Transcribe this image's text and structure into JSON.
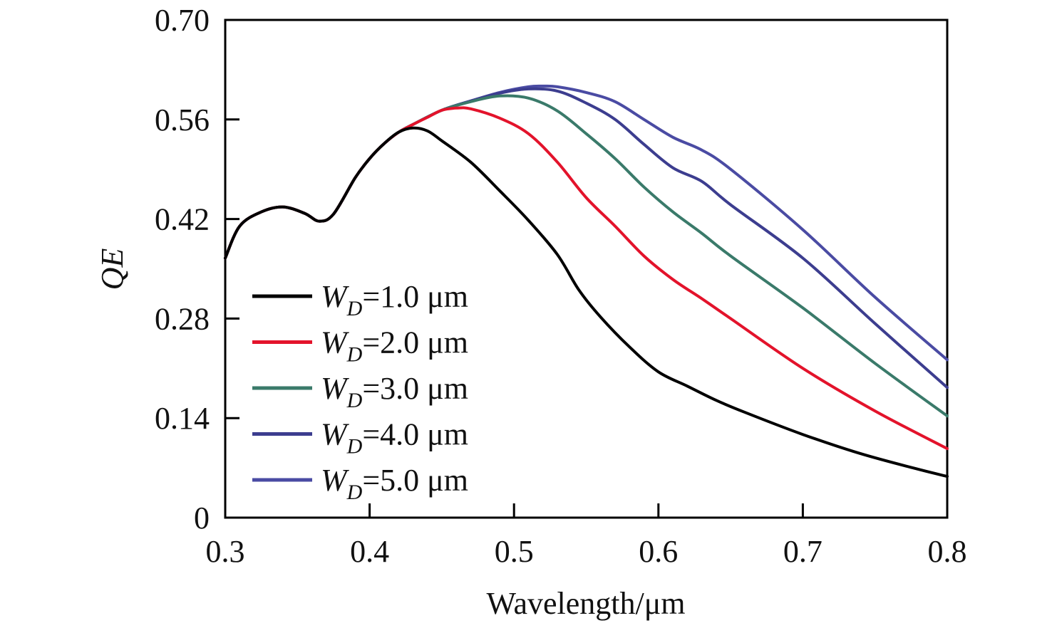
{
  "chart_data": {
    "type": "line",
    "title": "",
    "xlabel": "Wavelength/μm",
    "ylabel": "QE",
    "xlim": [
      0.3,
      0.8
    ],
    "ylim": [
      0,
      0.7
    ],
    "x_ticks": [
      "0.3",
      "0.4",
      "0.5",
      "0.6",
      "0.7",
      "0.8"
    ],
    "y_ticks": [
      "0",
      "0.14",
      "0.28",
      "0.42",
      "0.56",
      "0.70"
    ],
    "grid": false,
    "legend_position": "bottom-left",
    "series": [
      {
        "name": "WD=1.0 μm",
        "legend": {
          "symbol": "W",
          "subscript": "D",
          "rest": "=1.0 μm"
        },
        "color": "#000000",
        "points": [
          [
            0.3,
            0.365
          ],
          [
            0.31,
            0.41
          ],
          [
            0.325,
            0.43
          ],
          [
            0.34,
            0.437
          ],
          [
            0.355,
            0.428
          ],
          [
            0.365,
            0.417
          ],
          [
            0.375,
            0.427
          ],
          [
            0.39,
            0.478
          ],
          [
            0.4,
            0.505
          ],
          [
            0.41,
            0.526
          ],
          [
            0.42,
            0.542
          ],
          [
            0.43,
            0.548
          ],
          [
            0.44,
            0.544
          ],
          [
            0.45,
            0.53
          ],
          [
            0.47,
            0.5
          ],
          [
            0.49,
            0.46
          ],
          [
            0.51,
            0.418
          ],
          [
            0.53,
            0.37
          ],
          [
            0.545,
            0.32
          ],
          [
            0.56,
            0.282
          ],
          [
            0.58,
            0.24
          ],
          [
            0.6,
            0.205
          ],
          [
            0.62,
            0.185
          ],
          [
            0.64,
            0.165
          ],
          [
            0.66,
            0.148
          ],
          [
            0.7,
            0.117
          ],
          [
            0.74,
            0.09
          ],
          [
            0.78,
            0.068
          ],
          [
            0.8,
            0.058
          ]
        ]
      },
      {
        "name": "WD=2.0 μm",
        "legend": {
          "symbol": "W",
          "subscript": "D",
          "rest": "=2.0 μm"
        },
        "color": "#e3132b",
        "points": [
          [
            0.3,
            0.365
          ],
          [
            0.31,
            0.41
          ],
          [
            0.325,
            0.43
          ],
          [
            0.34,
            0.437
          ],
          [
            0.355,
            0.428
          ],
          [
            0.365,
            0.417
          ],
          [
            0.375,
            0.427
          ],
          [
            0.39,
            0.478
          ],
          [
            0.4,
            0.505
          ],
          [
            0.41,
            0.526
          ],
          [
            0.42,
            0.542
          ],
          [
            0.43,
            0.553
          ],
          [
            0.44,
            0.563
          ],
          [
            0.45,
            0.573
          ],
          [
            0.46,
            0.576
          ],
          [
            0.47,
            0.575
          ],
          [
            0.49,
            0.562
          ],
          [
            0.51,
            0.54
          ],
          [
            0.53,
            0.5
          ],
          [
            0.55,
            0.45
          ],
          [
            0.57,
            0.41
          ],
          [
            0.59,
            0.368
          ],
          [
            0.61,
            0.335
          ],
          [
            0.63,
            0.308
          ],
          [
            0.65,
            0.28
          ],
          [
            0.7,
            0.21
          ],
          [
            0.75,
            0.15
          ],
          [
            0.8,
            0.097
          ]
        ]
      },
      {
        "name": "WD=3.0 μm",
        "legend": {
          "symbol": "W",
          "subscript": "D",
          "rest": "=3.0 μm"
        },
        "color": "#3a7a6a",
        "points": [
          [
            0.3,
            0.365
          ],
          [
            0.31,
            0.41
          ],
          [
            0.325,
            0.43
          ],
          [
            0.34,
            0.437
          ],
          [
            0.355,
            0.428
          ],
          [
            0.365,
            0.417
          ],
          [
            0.375,
            0.427
          ],
          [
            0.39,
            0.478
          ],
          [
            0.4,
            0.505
          ],
          [
            0.41,
            0.526
          ],
          [
            0.42,
            0.542
          ],
          [
            0.43,
            0.553
          ],
          [
            0.45,
            0.573
          ],
          [
            0.47,
            0.585
          ],
          [
            0.49,
            0.593
          ],
          [
            0.51,
            0.59
          ],
          [
            0.53,
            0.572
          ],
          [
            0.55,
            0.54
          ],
          [
            0.57,
            0.505
          ],
          [
            0.59,
            0.465
          ],
          [
            0.61,
            0.43
          ],
          [
            0.63,
            0.4
          ],
          [
            0.65,
            0.368
          ],
          [
            0.7,
            0.295
          ],
          [
            0.75,
            0.217
          ],
          [
            0.8,
            0.143
          ]
        ]
      },
      {
        "name": "WD=4.0 μm",
        "legend": {
          "symbol": "W",
          "subscript": "D",
          "rest": "=4.0 μm"
        },
        "color": "#3c3d8f",
        "points": [
          [
            0.3,
            0.365
          ],
          [
            0.31,
            0.41
          ],
          [
            0.325,
            0.43
          ],
          [
            0.34,
            0.437
          ],
          [
            0.355,
            0.428
          ],
          [
            0.365,
            0.417
          ],
          [
            0.375,
            0.427
          ],
          [
            0.39,
            0.478
          ],
          [
            0.4,
            0.505
          ],
          [
            0.41,
            0.526
          ],
          [
            0.42,
            0.542
          ],
          [
            0.43,
            0.553
          ],
          [
            0.45,
            0.573
          ],
          [
            0.47,
            0.586
          ],
          [
            0.49,
            0.597
          ],
          [
            0.51,
            0.603
          ],
          [
            0.53,
            0.6
          ],
          [
            0.55,
            0.583
          ],
          [
            0.57,
            0.56
          ],
          [
            0.59,
            0.525
          ],
          [
            0.61,
            0.492
          ],
          [
            0.63,
            0.473
          ],
          [
            0.65,
            0.44
          ],
          [
            0.7,
            0.365
          ],
          [
            0.75,
            0.273
          ],
          [
            0.8,
            0.183
          ]
        ]
      },
      {
        "name": "WD=5.0 μm",
        "legend": {
          "symbol": "W",
          "subscript": "D",
          "rest": "=5.0 μm"
        },
        "color": "#4a4ba3",
        "points": [
          [
            0.3,
            0.365
          ],
          [
            0.31,
            0.41
          ],
          [
            0.325,
            0.43
          ],
          [
            0.34,
            0.437
          ],
          [
            0.355,
            0.428
          ],
          [
            0.365,
            0.417
          ],
          [
            0.375,
            0.427
          ],
          [
            0.39,
            0.478
          ],
          [
            0.4,
            0.505
          ],
          [
            0.41,
            0.526
          ],
          [
            0.42,
            0.542
          ],
          [
            0.43,
            0.553
          ],
          [
            0.45,
            0.573
          ],
          [
            0.47,
            0.586
          ],
          [
            0.49,
            0.598
          ],
          [
            0.51,
            0.606
          ],
          [
            0.52,
            0.607
          ],
          [
            0.53,
            0.606
          ],
          [
            0.55,
            0.598
          ],
          [
            0.57,
            0.585
          ],
          [
            0.59,
            0.56
          ],
          [
            0.61,
            0.535
          ],
          [
            0.63,
            0.517
          ],
          [
            0.65,
            0.49
          ],
          [
            0.7,
            0.405
          ],
          [
            0.75,
            0.31
          ],
          [
            0.8,
            0.222
          ]
        ]
      }
    ]
  }
}
